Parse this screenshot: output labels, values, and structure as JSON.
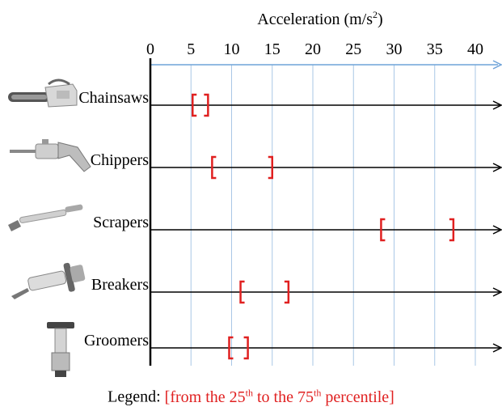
{
  "chart_data": {
    "type": "range",
    "title": "",
    "xlabel_text": "Acceleration (m/s",
    "xlabel_sup": "2",
    "xlabel_close": ")",
    "xlim": [
      0,
      43
    ],
    "xticks": [
      0,
      5,
      10,
      15,
      20,
      25,
      30,
      35,
      40
    ],
    "grid": true,
    "categories": [
      "Chainsaws",
      "Chippers",
      "Scrapers",
      "Breakers",
      "Groomers"
    ],
    "ranges": [
      {
        "name": "Chainsaws",
        "low": 5.2,
        "high": 7.1
      },
      {
        "name": "Chippers",
        "low": 7.6,
        "high": 15.0
      },
      {
        "name": "Scrapers",
        "low": 28.4,
        "high": 37.3
      },
      {
        "name": "Breakers",
        "low": 11.1,
        "high": 17.0
      },
      {
        "name": "Groomers",
        "low": 9.7,
        "high": 12.0
      }
    ],
    "colors": {
      "range": "#e02020",
      "grid": "#a9c7e6",
      "axis": "#000000",
      "top_axis": "#6fa3d8"
    },
    "legend": {
      "prefix": "Legend: ",
      "p1": "[from the 25",
      "p1_sup": "th",
      "p2": " to the 75",
      "p2_sup": "th",
      "p3": " percentile]",
      "placement": "bottom-center"
    },
    "icons": [
      "chainsaw-icon",
      "chipper-icon",
      "scraper-icon",
      "breaker-icon",
      "groomer-icon"
    ]
  }
}
